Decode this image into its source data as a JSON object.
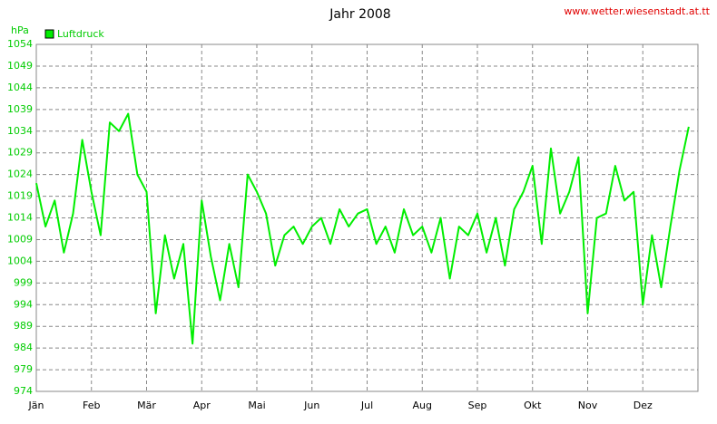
{
  "chart_data": {
    "type": "line",
    "title": "Jahr 2008",
    "source": "www.wetter.wiesenstadt.at.tt",
    "y_label": "hPa",
    "categories": [
      "Jän",
      null,
      null,
      null,
      null,
      null,
      "Feb",
      null,
      null,
      null,
      null,
      null,
      "Mär",
      null,
      null,
      null,
      null,
      null,
      "Apr",
      null,
      null,
      null,
      null,
      null,
      "Mai",
      null,
      null,
      null,
      null,
      null,
      "Jun",
      null,
      null,
      null,
      null,
      null,
      "Jul",
      null,
      null,
      null,
      null,
      null,
      "Aug",
      null,
      null,
      null,
      null,
      null,
      "Sep",
      null,
      null,
      null,
      null,
      null,
      "Okt",
      null,
      null,
      null,
      null,
      null,
      "Nov",
      null,
      null,
      null,
      null,
      null,
      "Dez",
      null,
      null,
      null,
      null,
      null
    ],
    "series": [
      {
        "name": "Luftdruck",
        "color": "#00ee00",
        "values": [
          1022,
          1012,
          1018,
          1006,
          1015,
          1032,
          1020,
          1010,
          1036,
          1034,
          1038,
          1024,
          1020,
          992,
          1010,
          1000,
          1008,
          985,
          1018,
          1005,
          995,
          1008,
          998,
          1024,
          1020,
          1015,
          1003,
          1010,
          1012,
          1008,
          1012,
          1014,
          1008,
          1016,
          1012,
          1015,
          1016,
          1008,
          1012,
          1006,
          1016,
          1010,
          1012,
          1006,
          1014,
          1000,
          1012,
          1010,
          1015,
          1006,
          1014,
          1003,
          1016,
          1020,
          1026,
          1008,
          1030,
          1015,
          1020,
          1028,
          992,
          1014,
          1015,
          1026,
          1018,
          1020,
          994,
          1010,
          998,
          1012,
          1025,
          1035
        ]
      }
    ],
    "ylim": [
      974,
      1054
    ],
    "yticks": [
      974,
      979,
      984,
      989,
      994,
      999,
      1004,
      1009,
      1014,
      1019,
      1024,
      1029,
      1034,
      1039,
      1044,
      1049,
      1054
    ],
    "grid": true
  }
}
